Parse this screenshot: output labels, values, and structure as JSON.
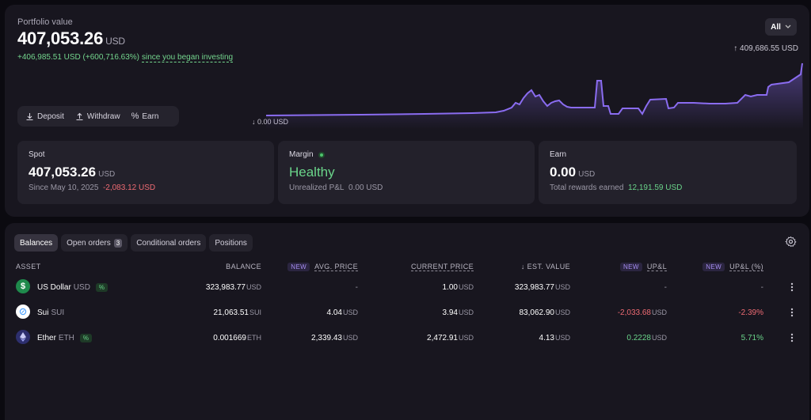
{
  "portfolio": {
    "label": "Portfolio value",
    "value": "407,053.26",
    "currency": "USD",
    "change": "+406,985.51 USD (+600,716.63%)",
    "since_text": "since you began investing",
    "period": "All",
    "max_label": "409,686.55 USD",
    "min_label": "0.00 USD"
  },
  "actions": {
    "deposit": "Deposit",
    "withdraw": "Withdraw",
    "earn": "Earn"
  },
  "stats": {
    "spot": {
      "title": "Spot",
      "value": "407,053.26",
      "currency": "USD",
      "since": "Since May 10, 2025",
      "change": "-2,083.12 USD"
    },
    "margin": {
      "title": "Margin",
      "status": "Healthy",
      "pnl_label": "Unrealized P&L",
      "pnl_value": "0.00 USD"
    },
    "earn": {
      "title": "Earn",
      "value": "0.00",
      "currency": "USD",
      "rewards_label": "Total rewards earned",
      "rewards_value": "12,191.59 USD"
    }
  },
  "tabs": {
    "balances": "Balances",
    "open_orders": "Open orders",
    "open_orders_count": "3",
    "conditional": "Conditional orders",
    "positions": "Positions"
  },
  "table": {
    "headers": {
      "asset": "ASSET",
      "balance": "BALANCE",
      "new": "NEW",
      "avg_price": "AVG. PRICE",
      "current_price": "CURRENT PRICE",
      "est_value": "EST. VALUE",
      "upl": "UP&L",
      "upl_pct": "UP&L (%)"
    },
    "rows": [
      {
        "name": "US Dollar",
        "ticker": "USD",
        "pct_badge": "%",
        "balance": "323,983.77",
        "balance_cur": "USD",
        "avg_price": "-",
        "avg_cur": "",
        "current_price": "1.00",
        "current_cur": "USD",
        "est_value": "323,983.77",
        "est_cur": "USD",
        "upl": "-",
        "upl_cur": "",
        "upl_pct": "-"
      },
      {
        "name": "Sui",
        "ticker": "SUI",
        "pct_badge": "",
        "balance": "21,063.51",
        "balance_cur": "SUI",
        "avg_price": "4.04",
        "avg_cur": "USD",
        "current_price": "3.94",
        "current_cur": "USD",
        "est_value": "83,062.90",
        "est_cur": "USD",
        "upl": "-2,033.68",
        "upl_cur": "USD",
        "upl_pct": "-2.39%"
      },
      {
        "name": "Ether",
        "ticker": "ETH",
        "pct_badge": "%",
        "balance": "0.001669",
        "balance_cur": "ETH",
        "avg_price": "2,339.43",
        "avg_cur": "USD",
        "current_price": "2,472.91",
        "current_cur": "USD",
        "est_value": "4.13",
        "est_cur": "USD",
        "upl": "0.2228",
        "upl_cur": "USD",
        "upl_pct": "5.71%"
      }
    ]
  },
  "colors": {
    "accent": "#8a6cf0",
    "positive": "#6ad48a",
    "negative": "#ef6b73",
    "usd_icon": "#1f8a4c",
    "sui_icon": "#ffffff",
    "eth_icon": "#2d2f6e"
  },
  "icons": {
    "usd": "dollar-icon",
    "sui": "sui-drop-icon",
    "eth": "ethereum-icon",
    "settings": "gear-icon",
    "more": "kebab-icon"
  }
}
